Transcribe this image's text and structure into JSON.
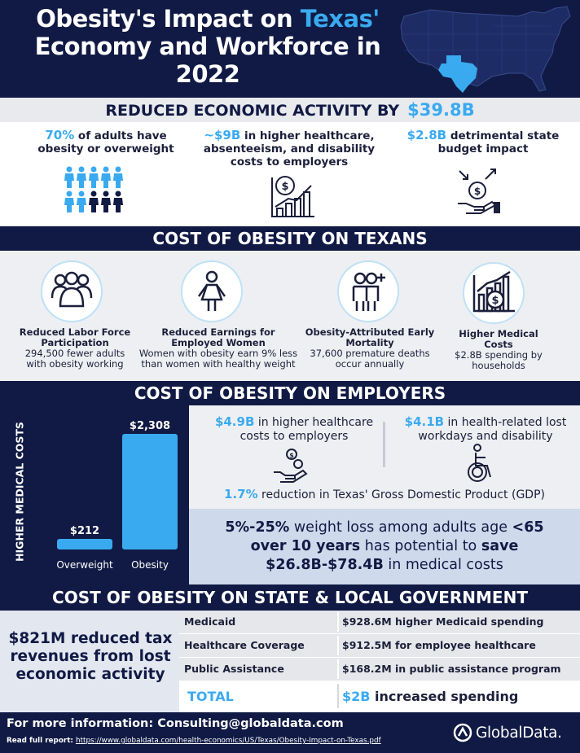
{
  "header": {
    "title_line1_a": "Obesity's Impact on ",
    "title_line1_b": "Texas'",
    "title_line2": "Economy and Workforce in",
    "title_line3": "2022"
  },
  "colors": {
    "navy": "#101a44",
    "accent": "#3aaaf0",
    "light_grey": "#eeeff2"
  },
  "economic": {
    "heading": "REDUCED ECONOMIC ACTIVITY BY",
    "amount": "$39.8B",
    "items": [
      {
        "value": "70%",
        "text": " of adults have obesity or overweight",
        "icon": "people-icon"
      },
      {
        "value": "~$9B",
        "text": " in higher healthcare, absenteeism, and disability costs to employers",
        "icon": "cost-chart-icon"
      },
      {
        "value": "$2.8B",
        "text": " detrimental state budget impact",
        "icon": "budget-hand-icon"
      }
    ],
    "people_obese_fraction": 0.7
  },
  "texans": {
    "heading": "COST OF OBESITY ON TEXANS",
    "items": [
      {
        "title": "Reduced Labor Force Participation",
        "desc": "294,500 fewer adults with obesity working",
        "icon": "group-icon"
      },
      {
        "title": "Reduced Earnings for Employed Women",
        "desc": "Women with obesity earn 9% less than women with healthy weight",
        "icon": "woman-icon"
      },
      {
        "title": "Obesity-Attributed Early Mortality",
        "desc": "37,600 premature deaths occur annually",
        "icon": "people-plus-icon"
      },
      {
        "title": "Higher Medical Costs",
        "desc": "$2.8B spending by households",
        "icon": "medical-cost-icon"
      }
    ]
  },
  "employers": {
    "heading": "COST OF OBESITY ON EMPLOYERS",
    "item1_value": "$4.9B",
    "item1_text": " in higher healthcare costs to employers",
    "item2_value": "$4.1B",
    "item2_text": " in health-related lost workdays and disability",
    "gdp_value": "1.7%",
    "gdp_text": " reduction in Texas' Gross Domestic Product (GDP)",
    "callout": {
      "p1": "5%-25%",
      "p2": " weight loss among adults age ",
      "p3": "<65",
      "p4": "over 10 years",
      "p5": " has potential to ",
      "p6": "save",
      "p7": "$26.8B-$78.4B",
      "p8": " in medical costs"
    }
  },
  "chart_data": {
    "type": "bar",
    "categories": [
      "Overweight",
      "Obesity"
    ],
    "values": [
      212,
      2308
    ],
    "value_labels": [
      "$212",
      "$2,308"
    ],
    "ylabel": "HIGHER MEDICAL COSTS",
    "ylim": [
      0,
      2308
    ],
    "grid": false,
    "color": "#3aaaf0"
  },
  "government": {
    "heading": "COST OF OBESITY ON STATE & LOCAL GOVERNMENT",
    "left_text": "$821M reduced tax revenues from lost economic activity",
    "rows": [
      {
        "label": "Medicaid",
        "value": "$928.6M higher Medicaid spending"
      },
      {
        "label": "Healthcare Coverage",
        "value": "$912.5M for employee healthcare coverage"
      },
      {
        "label": "Public Assistance Program",
        "value": "$168.2M in public assistance program costs"
      }
    ],
    "total_label": "TOTAL",
    "total_value": "$2B",
    "total_text": " increased spending"
  },
  "footer": {
    "more_info": "For more information:  Consulting@globaldata.com",
    "report_label": "Read full report: ",
    "report_url": "https://www.globaldata.com/health-economics/US/Texas/Obesity-Impact-on-Texas.pdf",
    "logo": "GlobalData."
  }
}
